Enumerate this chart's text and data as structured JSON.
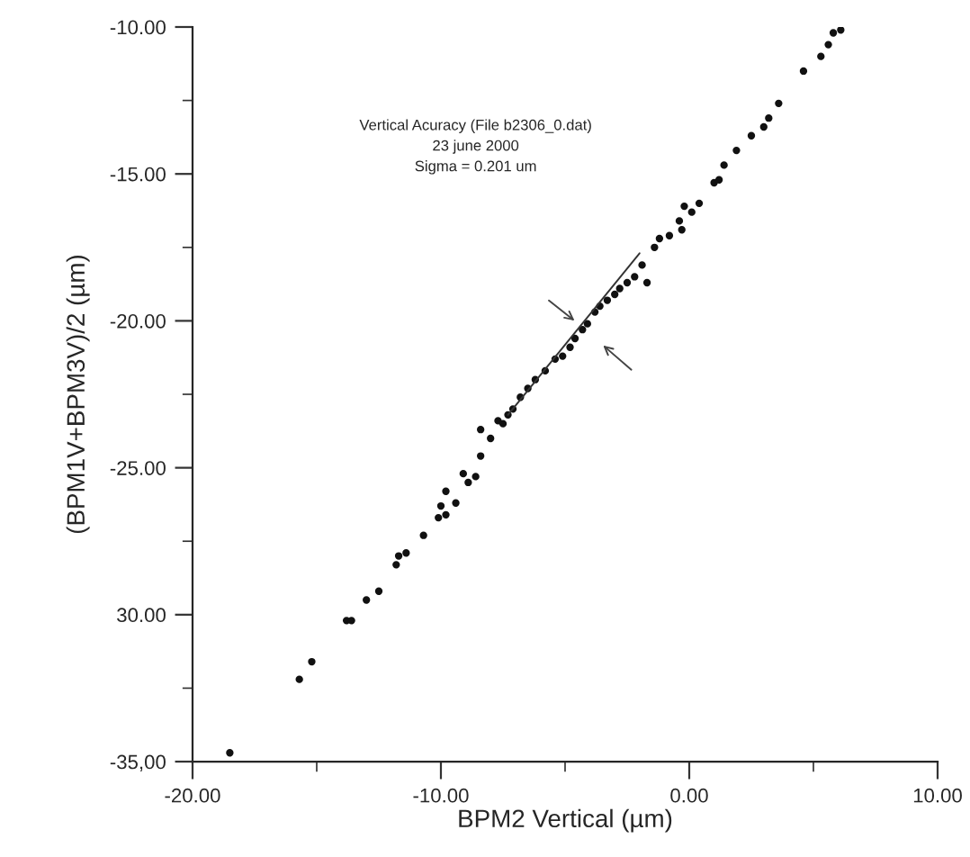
{
  "chart_data": {
    "type": "scatter",
    "xlabel": "BPM2 Vertical (µm)",
    "ylabel": "(BPM1V+BPM3V)/2 (µm)",
    "annotations": [
      "Vertical Acuracy (File b2306_0.dat)",
      "23 june 2000",
      "Sigma = 0.201 um"
    ],
    "xlim": [
      -20,
      10
    ],
    "xticks": [
      {
        "value": -20,
        "label": "-20.00"
      },
      {
        "value": -10,
        "label": "-10.00"
      },
      {
        "value": 0,
        "label": "0.00"
      },
      {
        "value": 10,
        "label": "10.00"
      }
    ],
    "ylim": [
      -35,
      -10
    ],
    "yticks": [
      {
        "value": -35,
        "label": "-35,00"
      },
      {
        "value": -30,
        "label": "30.00"
      },
      {
        "value": -25,
        "label": "-25.00"
      },
      {
        "value": -20,
        "label": "-20.00"
      },
      {
        "value": -15,
        "label": "-15.00"
      },
      {
        "value": -10,
        "label": "-10.00"
      }
    ],
    "grid": false,
    "legend": false,
    "series": [
      {
        "marker": "circle",
        "color": "#111111",
        "x": [
          -18.5,
          -15.7,
          -15.2,
          -13.8,
          -13.6,
          -13.0,
          -12.5,
          -11.8,
          -11.7,
          -11.4,
          -10.7,
          -10.1,
          -10.0,
          -9.8,
          -9.8,
          -9.4,
          -9.1,
          -8.9,
          -8.6,
          -8.4,
          -8.4,
          -8.0,
          -7.7,
          -7.5,
          -7.3,
          -7.1,
          -6.8,
          -6.5,
          -6.2,
          -5.8,
          -5.4,
          -5.1,
          -4.8,
          -4.6,
          -4.3,
          -4.1,
          -3.8,
          -3.6,
          -3.3,
          -3.0,
          -2.8,
          -2.5,
          -2.2,
          -1.9,
          -1.7,
          -1.4,
          -1.2,
          -0.8,
          -0.4,
          -0.3,
          -0.2,
          0.1,
          0.4,
          1.0,
          1.2,
          1.4,
          1.9,
          2.5,
          3.0,
          3.2,
          3.6,
          4.6,
          5.3,
          5.6,
          5.8,
          6.1
        ],
        "values": [
          -34.7,
          -32.2,
          -31.6,
          -30.2,
          -30.2,
          -29.5,
          -29.2,
          -28.3,
          -28.0,
          -27.9,
          -27.3,
          -26.7,
          -26.3,
          -26.6,
          -25.8,
          -26.2,
          -25.2,
          -25.5,
          -25.3,
          -24.6,
          -23.7,
          -24.0,
          -23.4,
          -23.5,
          -23.2,
          -23.0,
          -22.6,
          -22.3,
          -22.0,
          -21.7,
          -21.3,
          -21.2,
          -20.9,
          -20.6,
          -20.3,
          -20.1,
          -19.7,
          -19.5,
          -19.3,
          -19.1,
          -18.9,
          -18.7,
          -18.5,
          -18.1,
          -18.7,
          -17.5,
          -17.2,
          -17.1,
          -16.6,
          -16.9,
          -16.1,
          -16.3,
          -16.0,
          -15.3,
          -15.2,
          -14.7,
          -14.2,
          -13.7,
          -13.4,
          -13.1,
          -12.6,
          -11.5,
          -11.0,
          -10.6,
          -10.2,
          -10.1
        ]
      },
      {
        "type": "line",
        "marker": "none",
        "color": "#333333",
        "x": [
          -7.3,
          -2.0
        ],
        "values": [
          -23.2,
          -17.7
        ]
      }
    ]
  }
}
